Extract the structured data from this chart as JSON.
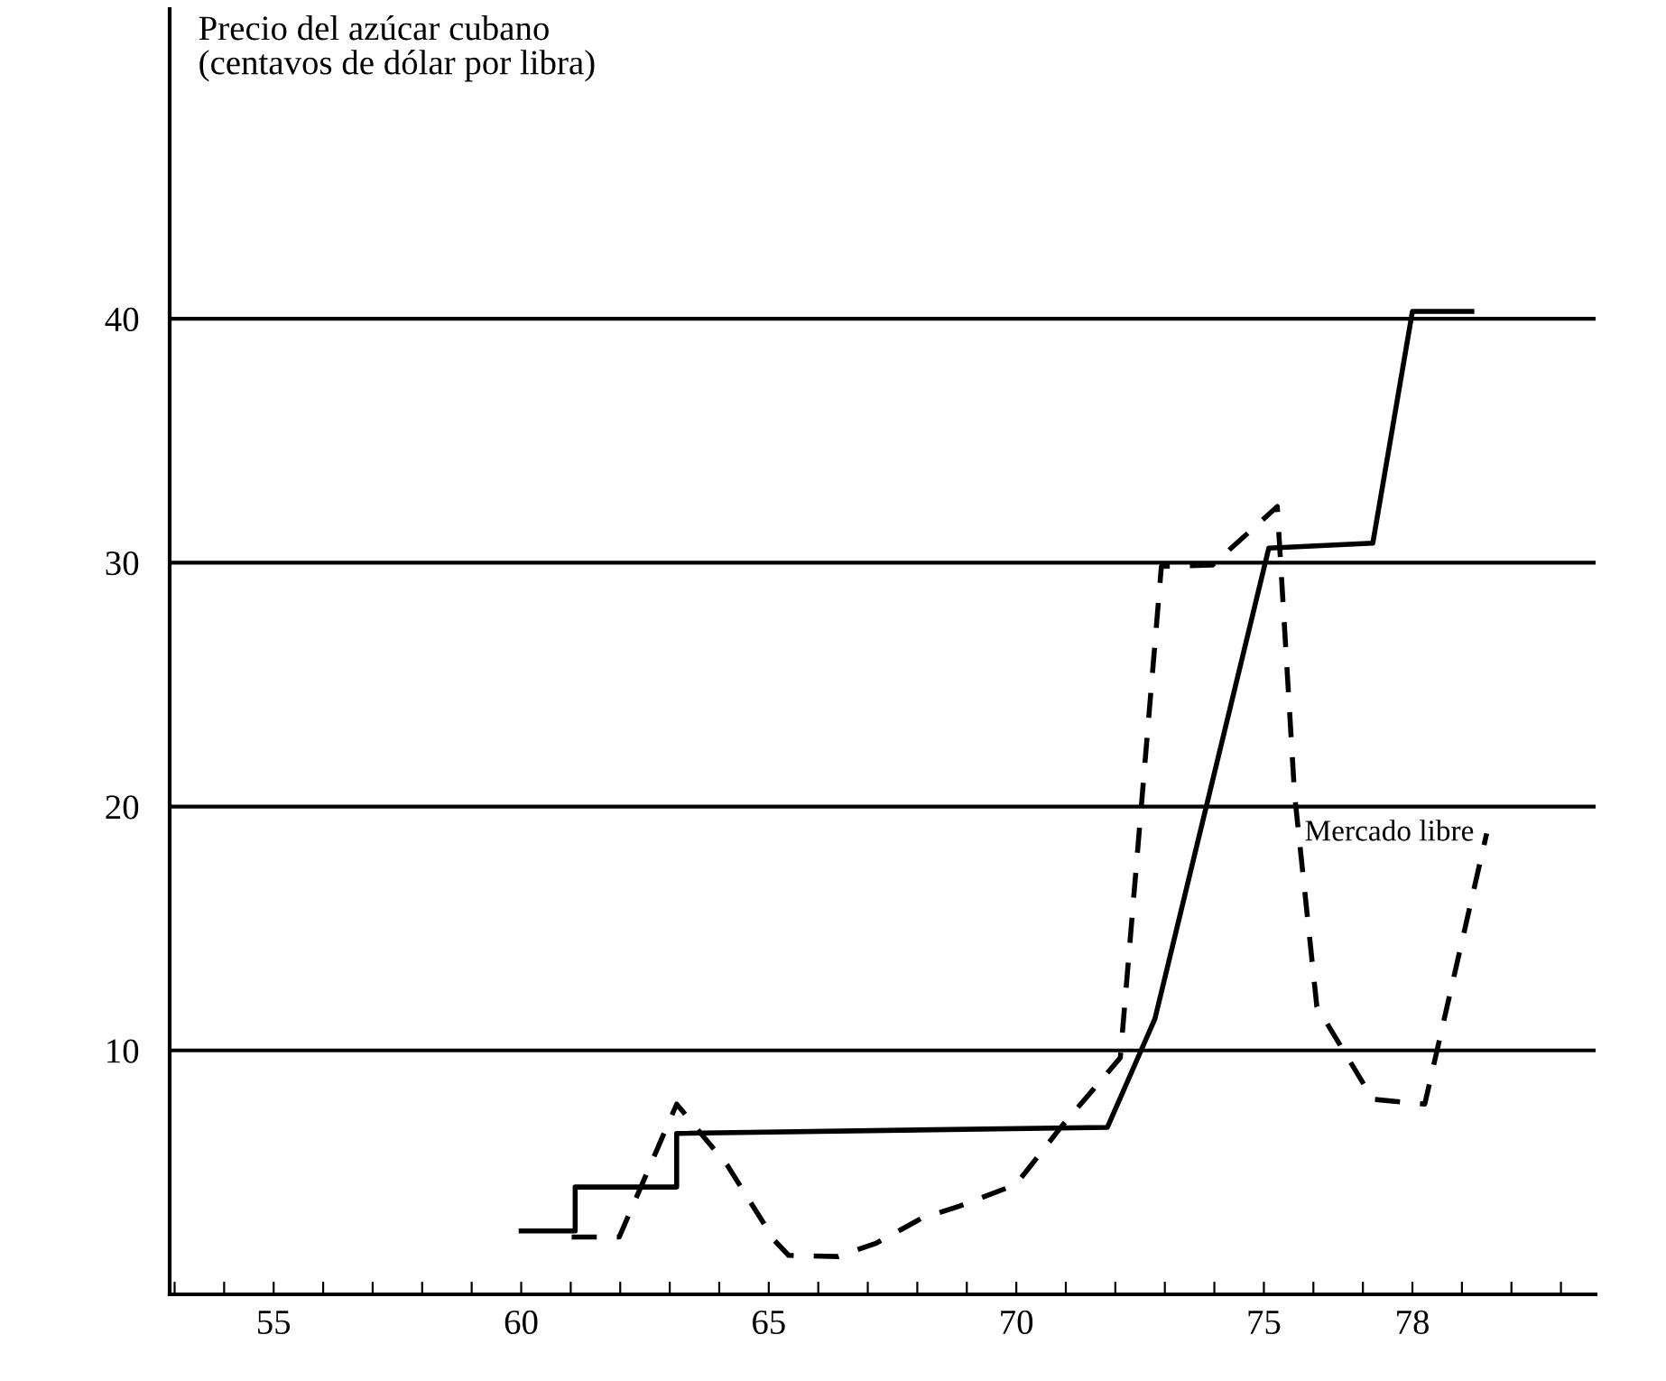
{
  "chart_data": {
    "type": "line",
    "ylabel": "Precio del azúcar cubano\n(centavos de dólar por libra)",
    "xlim": [
      52.9,
      81.7
    ],
    "ylim": [
      0,
      52.7
    ],
    "xticks": [
      {
        "value": 53,
        "label": null
      },
      {
        "value": 54,
        "label": null
      },
      55,
      {
        "value": 56,
        "label": null
      },
      {
        "value": 57,
        "label": null
      },
      {
        "value": 58,
        "label": null
      },
      {
        "value": 59,
        "label": null
      },
      60,
      {
        "value": 61,
        "label": null
      },
      {
        "value": 62,
        "label": null
      },
      {
        "value": 63,
        "label": null
      },
      {
        "value": 64,
        "label": null
      },
      65,
      {
        "value": 66,
        "label": null
      },
      {
        "value": 67,
        "label": null
      },
      {
        "value": 68,
        "label": null
      },
      {
        "value": 69,
        "label": null
      },
      70,
      {
        "value": 71,
        "label": null
      },
      {
        "value": 72,
        "label": null
      },
      {
        "value": 73,
        "label": null
      },
      {
        "value": 74,
        "label": null
      },
      75,
      {
        "value": 76,
        "label": null
      },
      {
        "value": 77,
        "label": null
      },
      78,
      {
        "value": 79,
        "label": null
      },
      {
        "value": 80,
        "label": null
      },
      {
        "value": 81,
        "label": null
      }
    ],
    "yticks": [
      10,
      20,
      30,
      40
    ],
    "grid": "y",
    "legend": false,
    "series": [
      {
        "color": "#000000",
        "line_style": "solid",
        "x": [
          60,
          61.09,
          61.09,
          63.14,
          63.14,
          71.84,
          72.8,
          75.1,
          77.2,
          78.0,
          79.2
        ],
        "values": [
          2.6,
          2.6,
          4.4,
          4.4,
          6.6,
          6.85,
          11.3,
          30.6,
          30.8,
          40.3,
          40.3
        ]
      },
      {
        "name": "Mercado libre",
        "color": "#000000",
        "line_style": "dashed",
        "x": [
          61.02,
          61.98,
          63.14,
          64.16,
          65.12,
          65.4,
          66.4,
          67.17,
          68.07,
          68.83,
          69.99,
          70.9,
          72.1,
          72.93,
          73.96,
          75.27,
          75.62,
          76.07,
          77.2,
          78.25,
          79.5
        ],
        "values": [
          2.35,
          2.35,
          7.8,
          5.3,
          2.2,
          1.6,
          1.55,
          2.1,
          3.1,
          3.6,
          4.5,
          6.85,
          9.7,
          29.85,
          29.9,
          32.3,
          20.5,
          11.8,
          8.0,
          7.8,
          18.9
        ]
      }
    ]
  }
}
